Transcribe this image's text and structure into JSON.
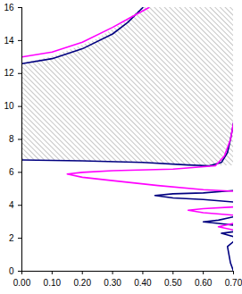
{
  "chart_data": {
    "type": "line",
    "xlim": [
      0,
      0.7
    ],
    "xticks": [
      0,
      0.1,
      0.2,
      0.3,
      0.4,
      0.5,
      0.6,
      0.7
    ],
    "ylim": [
      0,
      16
    ],
    "yticks": [
      0,
      2,
      4,
      6,
      8,
      10,
      12,
      14,
      16
    ],
    "grid": false,
    "shaded": {
      "color": "#a0a0a0",
      "y": [
        6.4,
        6.5,
        6.75,
        8,
        10,
        12.6,
        13,
        14,
        15,
        16
      ],
      "x1": [
        0.6,
        0.5,
        0,
        0,
        0,
        0,
        0.1,
        0.24,
        0.33,
        0.4
      ],
      "x2": [
        0.7,
        0.7,
        0.7,
        0.7,
        0.7,
        0.7,
        0.7,
        0.7,
        0.7,
        0.7
      ]
    },
    "series": [
      {
        "color": "#000080",
        "x": [
          0,
          0.1,
          0.2,
          0.3,
          0.35,
          0.4,
          null,
          0,
          0.2,
          0.4,
          0.55,
          0.62,
          0.66,
          0.68,
          0.69,
          0.7,
          null,
          0.7,
          0.6,
          0.5,
          0.44,
          0.5,
          0.6,
          0.7,
          null,
          0.7,
          0.65,
          0.6,
          0.65,
          0.7,
          null,
          0.7,
          0.66,
          0.7,
          null,
          0.7,
          0.68,
          0.69,
          0.7
        ],
        "values": [
          12.6,
          12.9,
          13.5,
          14.4,
          15.1,
          16,
          null,
          6.75,
          6.7,
          6.6,
          6.45,
          6.4,
          6.6,
          7.2,
          8,
          9,
          null,
          4.9,
          4.75,
          4.7,
          4.6,
          4.45,
          4.35,
          4.2,
          null,
          3.3,
          3.1,
          3.0,
          2.9,
          2.8,
          null,
          2.4,
          2.3,
          2.1,
          null,
          1.8,
          1.5,
          0.5,
          0
        ]
      },
      {
        "color": "#ff00ff",
        "x": [
          0,
          0.1,
          0.2,
          0.3,
          0.36,
          0.42,
          null,
          0.7,
          0.69,
          0.67,
          0.64,
          0.5,
          0.3,
          0.2,
          0.15,
          0.2,
          0.3,
          0.45,
          0.6,
          0.7,
          null,
          0.7,
          0.6,
          0.55,
          0.6,
          0.7,
          null,
          0.7,
          0.65,
          0.7
        ],
        "values": [
          13,
          13.3,
          13.9,
          14.8,
          15.4,
          16,
          null,
          9,
          8,
          7,
          6.4,
          6.2,
          6.1,
          6.0,
          5.9,
          5.7,
          5.5,
          5.2,
          4.95,
          4.85,
          null,
          3.9,
          3.8,
          3.7,
          3.55,
          3.4,
          null,
          2.9,
          2.7,
          2.5
        ]
      }
    ]
  }
}
